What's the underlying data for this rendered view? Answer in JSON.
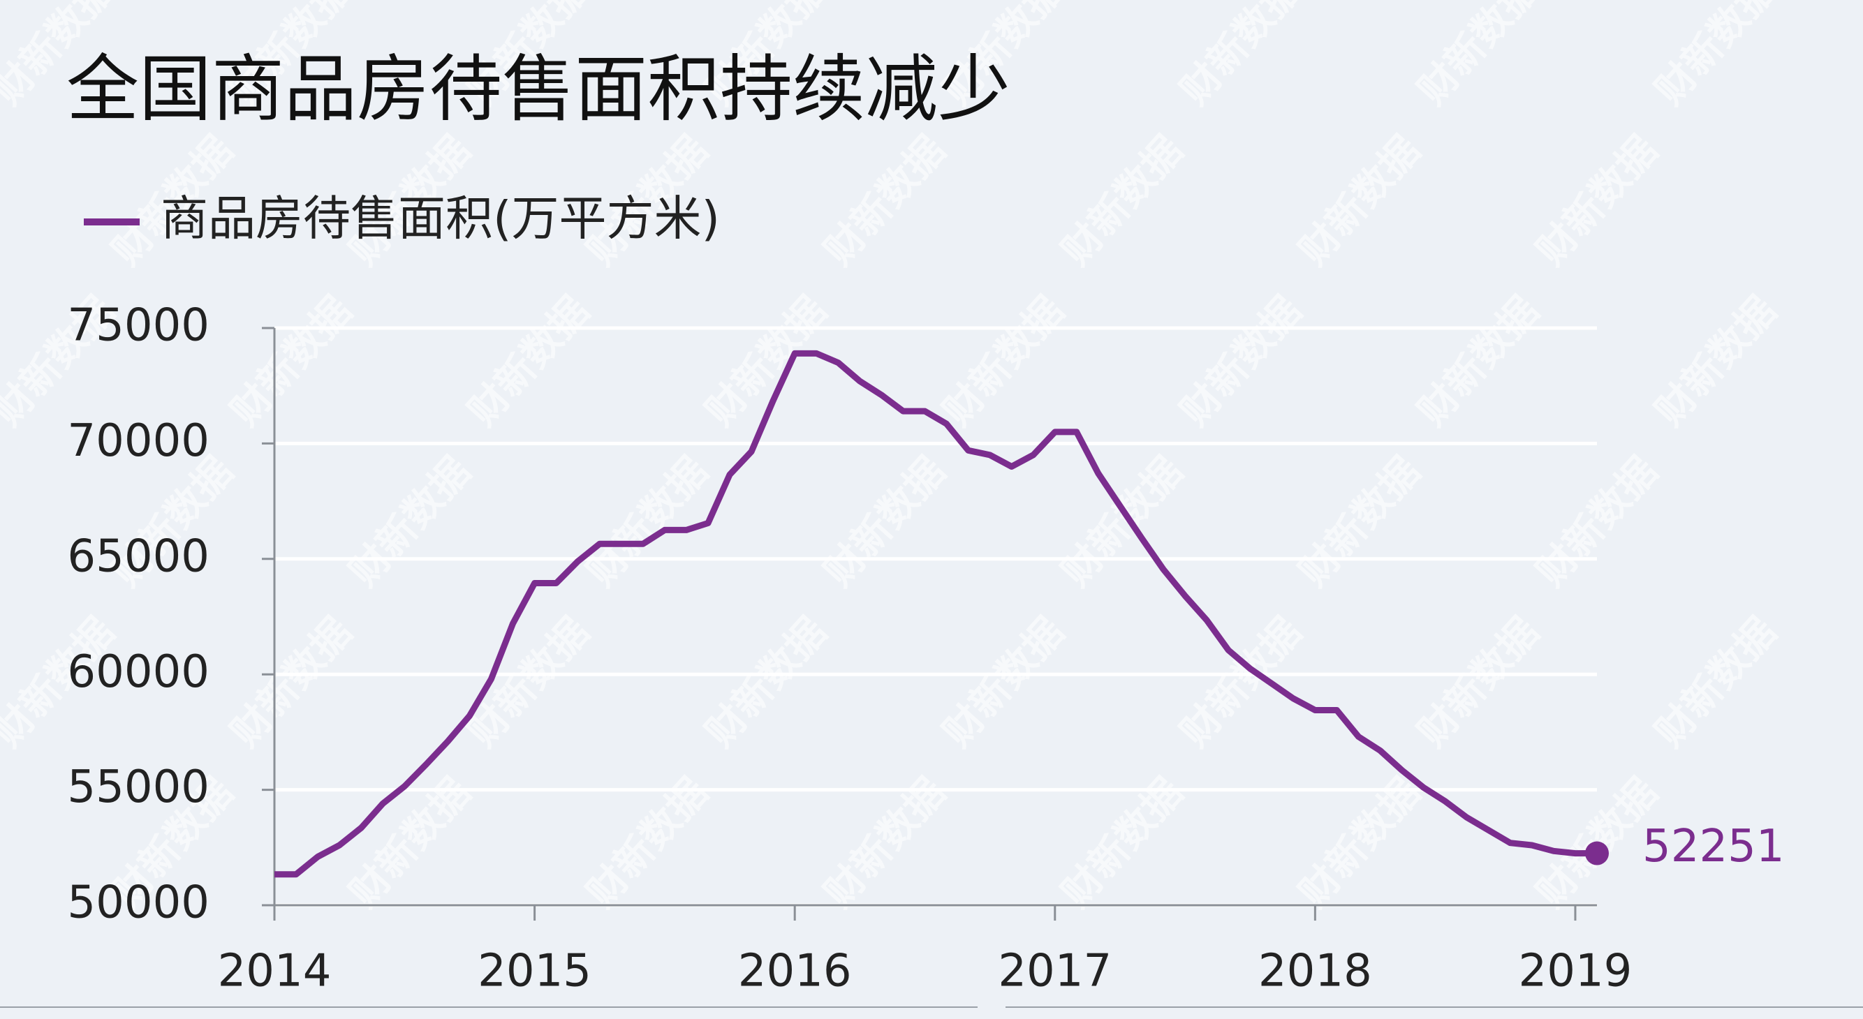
{
  "chart_data": {
    "type": "line",
    "title": "全国商品房待售面积持续减少",
    "watermark": "财新数据",
    "categories": [
      "2014",
      null,
      null,
      null,
      null,
      null,
      null,
      null,
      null,
      null,
      null,
      null,
      "2015",
      null,
      null,
      null,
      null,
      null,
      null,
      null,
      null,
      null,
      null,
      null,
      "2016",
      null,
      null,
      null,
      null,
      null,
      null,
      null,
      null,
      null,
      null,
      null,
      "2017",
      null,
      null,
      null,
      null,
      null,
      null,
      null,
      null,
      null,
      null,
      null,
      "2018",
      null,
      null,
      null,
      null,
      null,
      null,
      null,
      null,
      null,
      null,
      null,
      "2019",
      null
    ],
    "series": [
      {
        "name": "商品房待售面积(万平方米)",
        "color": "#7b2d8e",
        "values": [
          51340,
          51340,
          52100,
          52600,
          53350,
          54400,
          55150,
          56100,
          57100,
          58200,
          59800,
          62200,
          63950,
          63950,
          64900,
          65650,
          65650,
          65650,
          66250,
          66250,
          66550,
          68650,
          69650,
          71850,
          73900,
          73900,
          73500,
          72700,
          72100,
          71400,
          71400,
          70850,
          69700,
          69500,
          69000,
          69500,
          70500,
          70500,
          68700,
          67300,
          65900,
          64550,
          63400,
          62350,
          61050,
          60250,
          59600,
          58950,
          58450,
          58450,
          57300,
          56700,
          55850,
          55100,
          54500,
          53800,
          53250,
          52700,
          52600,
          52350,
          52250,
          52251
        ]
      }
    ],
    "ylim": [
      50000,
      75000
    ],
    "yticks": [
      50000,
      55000,
      60000,
      65000,
      70000,
      75000
    ],
    "grid": true,
    "legend": "top-left"
  }
}
